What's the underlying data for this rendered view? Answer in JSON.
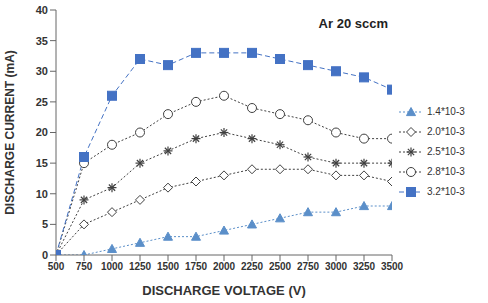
{
  "chart_data": {
    "type": "line",
    "title": "Ar 20 sccm",
    "x_label": "DISCHARGE VOLTAGE  (V)",
    "y_label": "DISCHARGE CURRENT  (mA)",
    "x": [
      500,
      750,
      1000,
      1250,
      1500,
      1750,
      2000,
      2250,
      2500,
      2750,
      3000,
      3250,
      3500
    ],
    "xlim": [
      500,
      3500
    ],
    "xticks": [
      500,
      750,
      1000,
      1250,
      1500,
      1750,
      2000,
      2250,
      2500,
      2750,
      3000,
      3250,
      3500
    ],
    "ylim": [
      0,
      40
    ],
    "yticks": [
      0,
      5,
      10,
      15,
      20,
      25,
      30,
      35,
      40
    ],
    "grid": false,
    "legend": "right",
    "series": [
      {
        "name": "1.4*10-3",
        "color": "#5b8fc9",
        "marker": "triangle",
        "line_style": "dotted",
        "values": [
          0,
          0,
          1,
          2,
          3,
          3,
          4,
          5,
          6,
          7,
          7,
          8,
          8
        ]
      },
      {
        "name": "2.0*10-3",
        "color": "#404040",
        "marker": "open_diamond",
        "line_style": "dotted",
        "values": [
          0,
          5,
          7,
          9,
          11,
          12,
          13,
          14,
          14,
          14,
          13,
          13,
          12
        ]
      },
      {
        "name": "2.5*10-3",
        "color": "#404040",
        "marker": "asterisk",
        "line_style": "dotted",
        "values": [
          0,
          9,
          11,
          15,
          17,
          19,
          20,
          19,
          18,
          16,
          15,
          15,
          15
        ]
      },
      {
        "name": "2.8*10-3",
        "color": "#404040",
        "marker": "open_circle",
        "line_style": "dotted",
        "values": [
          0,
          15,
          18,
          20,
          23,
          25,
          26,
          24,
          23,
          22,
          20,
          19,
          19
        ]
      },
      {
        "name": "3.2*10-3",
        "color": "#4472c4",
        "marker": "square",
        "line_style": "dashed",
        "values": [
          0,
          16,
          26,
          32,
          31,
          33,
          33,
          33,
          32,
          31,
          30,
          29,
          27
        ]
      }
    ]
  }
}
